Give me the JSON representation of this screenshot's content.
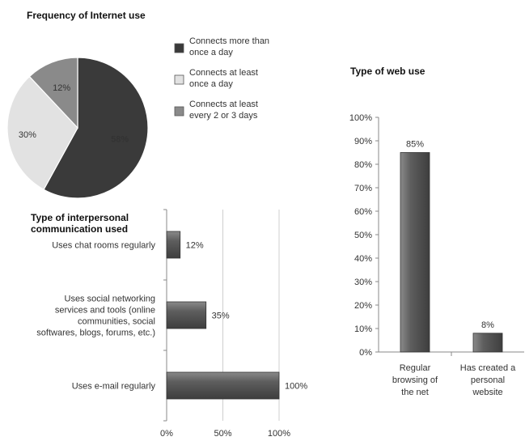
{
  "chart_data": [
    {
      "type": "pie",
      "title": "Frequency of Internet use",
      "slices": [
        {
          "label": "Connects more than once a day",
          "value": 58,
          "display": "58%",
          "color": "#3a3a3a"
        },
        {
          "label": "Connects at least once a day",
          "value": 30,
          "display": "30%",
          "color": "#e2e2e2"
        },
        {
          "label": "Connects at least every 2 or 3 days",
          "value": 12,
          "display": "12%",
          "color": "#8a8a8a"
        }
      ],
      "legend_position": "right"
    },
    {
      "type": "bar",
      "orientation": "horizontal",
      "title": "Type of interpersonal communication used",
      "categories": [
        "Uses chat rooms regularly",
        "Uses social networking services and tools (online communities, social softwares, blogs, forums, etc.)",
        "Uses e-mail regularly"
      ],
      "values": [
        12,
        35,
        100
      ],
      "data_labels": [
        "12%",
        "35%",
        "100%"
      ],
      "xlim": [
        0,
        100
      ],
      "xticks": [
        "0%",
        "50%",
        "100%"
      ],
      "grid": true,
      "color": "#5a5a5a"
    },
    {
      "type": "bar",
      "orientation": "vertical",
      "title": "Type of web use",
      "categories": [
        "Regular browsing of the net",
        "Has created a personal website"
      ],
      "values": [
        85,
        8
      ],
      "data_labels": [
        "85%",
        "8%"
      ],
      "ylim": [
        0,
        100
      ],
      "yticks": [
        "0%",
        "10%",
        "20%",
        "30%",
        "40%",
        "50%",
        "60%",
        "70%",
        "80%",
        "90%",
        "100%"
      ],
      "grid": false,
      "color": "#5a5a5a"
    }
  ]
}
